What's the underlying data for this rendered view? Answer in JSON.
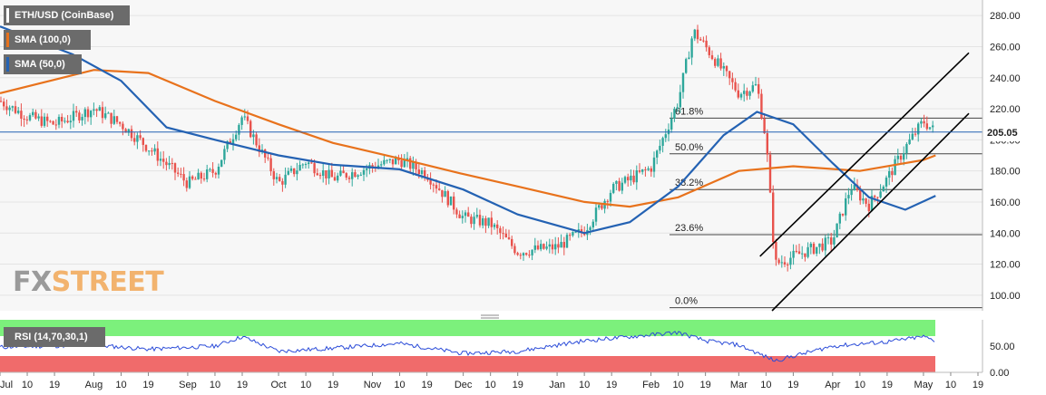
{
  "legend": {
    "price": "ETH/USD (CoinBase)",
    "sma100": "SMA (100,0)",
    "sma50": "SMA (50,0)",
    "rsi": "RSI (14,70,30,1)"
  },
  "watermark": {
    "part1": "FX",
    "part2": "STREET"
  },
  "colors": {
    "bull": "#2ea79b",
    "bear": "#e8524c",
    "sma100": "#e8721c",
    "sma50": "#2462b3",
    "rsi_line": "#2a4bd8",
    "overbought_zone": "#7cf07c",
    "oversold_zone": "#f06b6b",
    "channel": "#000000",
    "fib": "#444444"
  },
  "chart_data": {
    "type": "candlestick",
    "title": "ETH/USD (CoinBase)",
    "last_price": "205.05",
    "y_axis": {
      "ylim": [
        90,
        290
      ],
      "ticks": [
        "100.00",
        "120.00",
        "140.00",
        "160.00",
        "180.00",
        "200.00",
        "220.00",
        "240.00",
        "260.00",
        "280.00"
      ]
    },
    "x_axis": {
      "labels": [
        "Jul",
        "10",
        "19",
        "Aug",
        "10",
        "19",
        "Sep",
        "10",
        "19",
        "Oct",
        "10",
        "19",
        "Nov",
        "10",
        "19",
        "Dec",
        "10",
        "19",
        "Jan",
        "10",
        "19",
        "Feb",
        "10",
        "19",
        "Mar",
        "10",
        "19",
        "Apr",
        "10",
        "19",
        "May",
        "10",
        "19"
      ]
    },
    "fibonacci": [
      {
        "label": "0.0%",
        "value": 92.0
      },
      {
        "label": "23.6%",
        "value": 139.0
      },
      {
        "label": "38.2%",
        "value": 168.0
      },
      {
        "label": "50.0%",
        "value": 191.0
      },
      {
        "label": "61.8%",
        "value": 214.0
      }
    ],
    "channel_lines": [
      {
        "from": [
          "2020-03-08",
          125
        ],
        "to": [
          "2020-05-16",
          256
        ]
      },
      {
        "from": [
          "2020-03-12",
          90
        ],
        "to": [
          "2020-05-16",
          217
        ]
      }
    ],
    "close_series": [
      {
        "date": "2019-07-01",
        "close": 225
      },
      {
        "date": "2019-07-10",
        "close": 215
      },
      {
        "date": "2019-07-19",
        "close": 210
      },
      {
        "date": "2019-08-01",
        "close": 220
      },
      {
        "date": "2019-08-10",
        "close": 210
      },
      {
        "date": "2019-08-19",
        "close": 195
      },
      {
        "date": "2019-09-01",
        "close": 172
      },
      {
        "date": "2019-09-10",
        "close": 180
      },
      {
        "date": "2019-09-19",
        "close": 215
      },
      {
        "date": "2019-10-01",
        "close": 172
      },
      {
        "date": "2019-10-10",
        "close": 186
      },
      {
        "date": "2019-10-19",
        "close": 175
      },
      {
        "date": "2019-11-01",
        "close": 183
      },
      {
        "date": "2019-11-10",
        "close": 187
      },
      {
        "date": "2019-11-19",
        "close": 178
      },
      {
        "date": "2019-12-01",
        "close": 150
      },
      {
        "date": "2019-12-10",
        "close": 146
      },
      {
        "date": "2019-12-19",
        "close": 128
      },
      {
        "date": "2020-01-01",
        "close": 131
      },
      {
        "date": "2020-01-10",
        "close": 142
      },
      {
        "date": "2020-01-19",
        "close": 168
      },
      {
        "date": "2020-02-01",
        "close": 182
      },
      {
        "date": "2020-02-10",
        "close": 225
      },
      {
        "date": "2020-02-15",
        "close": 270
      },
      {
        "date": "2020-02-19",
        "close": 260
      },
      {
        "date": "2020-03-01",
        "close": 230
      },
      {
        "date": "2020-03-07",
        "close": 235
      },
      {
        "date": "2020-03-10",
        "close": 200
      },
      {
        "date": "2020-03-13",
        "close": 120
      },
      {
        "date": "2020-03-19",
        "close": 125
      },
      {
        "date": "2020-04-01",
        "close": 135
      },
      {
        "date": "2020-04-07",
        "close": 170
      },
      {
        "date": "2020-04-13",
        "close": 158
      },
      {
        "date": "2020-04-19",
        "close": 175
      },
      {
        "date": "2020-04-25",
        "close": 195
      },
      {
        "date": "2020-05-01",
        "close": 212
      },
      {
        "date": "2020-05-05",
        "close": 205
      }
    ],
    "sma100_series": [
      {
        "date": "2019-07-01",
        "value": 230
      },
      {
        "date": "2019-08-01",
        "value": 245
      },
      {
        "date": "2019-08-19",
        "value": 243
      },
      {
        "date": "2019-09-10",
        "value": 225
      },
      {
        "date": "2019-10-01",
        "value": 210
      },
      {
        "date": "2019-10-19",
        "value": 198
      },
      {
        "date": "2019-11-10",
        "value": 188
      },
      {
        "date": "2019-12-01",
        "value": 178
      },
      {
        "date": "2019-12-19",
        "value": 170
      },
      {
        "date": "2020-01-10",
        "value": 160
      },
      {
        "date": "2020-01-25",
        "value": 157
      },
      {
        "date": "2020-02-10",
        "value": 163
      },
      {
        "date": "2020-03-01",
        "value": 180
      },
      {
        "date": "2020-03-19",
        "value": 183
      },
      {
        "date": "2020-04-10",
        "value": 180
      },
      {
        "date": "2020-05-01",
        "value": 187
      },
      {
        "date": "2020-05-05",
        "value": 190
      }
    ],
    "sma50_series": [
      {
        "date": "2019-07-01",
        "value": 273
      },
      {
        "date": "2019-07-25",
        "value": 255
      },
      {
        "date": "2019-08-10",
        "value": 238
      },
      {
        "date": "2019-08-25",
        "value": 208
      },
      {
        "date": "2019-09-10",
        "value": 200
      },
      {
        "date": "2019-10-01",
        "value": 190
      },
      {
        "date": "2019-10-19",
        "value": 184
      },
      {
        "date": "2019-11-10",
        "value": 181
      },
      {
        "date": "2019-12-01",
        "value": 168
      },
      {
        "date": "2019-12-19",
        "value": 152
      },
      {
        "date": "2020-01-10",
        "value": 140
      },
      {
        "date": "2020-01-25",
        "value": 147
      },
      {
        "date": "2020-02-10",
        "value": 170
      },
      {
        "date": "2020-02-25",
        "value": 203
      },
      {
        "date": "2020-03-07",
        "value": 218
      },
      {
        "date": "2020-03-19",
        "value": 210
      },
      {
        "date": "2020-04-01",
        "value": 185
      },
      {
        "date": "2020-04-13",
        "value": 163
      },
      {
        "date": "2020-04-25",
        "value": 155
      },
      {
        "date": "2020-05-05",
        "value": 164
      }
    ],
    "rsi_panel": {
      "y_ticks": [
        "0.00",
        "50.00"
      ],
      "levels": [
        30,
        70
      ],
      "series": [
        {
          "date": "2019-07-01",
          "value": 48
        },
        {
          "date": "2019-08-01",
          "value": 52
        },
        {
          "date": "2019-08-19",
          "value": 44
        },
        {
          "date": "2019-09-10",
          "value": 50
        },
        {
          "date": "2019-09-19",
          "value": 68
        },
        {
          "date": "2019-10-01",
          "value": 40
        },
        {
          "date": "2019-10-19",
          "value": 46
        },
        {
          "date": "2019-11-10",
          "value": 55
        },
        {
          "date": "2019-12-01",
          "value": 36
        },
        {
          "date": "2019-12-19",
          "value": 40
        },
        {
          "date": "2020-01-10",
          "value": 60
        },
        {
          "date": "2020-02-10",
          "value": 76
        },
        {
          "date": "2020-02-19",
          "value": 60
        },
        {
          "date": "2020-03-01",
          "value": 52
        },
        {
          "date": "2020-03-13",
          "value": 22
        },
        {
          "date": "2020-04-01",
          "value": 50
        },
        {
          "date": "2020-04-19",
          "value": 58
        },
        {
          "date": "2020-05-01",
          "value": 68
        },
        {
          "date": "2020-05-05",
          "value": 60
        }
      ]
    }
  }
}
